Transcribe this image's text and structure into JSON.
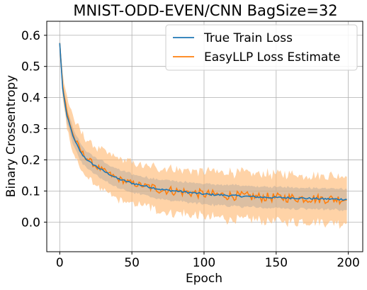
{
  "chart_data": {
    "type": "line",
    "title": "MNIST-ODD-EVEN/CNN BagSize=32",
    "xlabel": "Epoch",
    "ylabel": "Binary Crossentropy",
    "xlim": [
      -9,
      210
    ],
    "ylim": [
      -0.095,
      0.645
    ],
    "xticks": [
      0,
      50,
      100,
      150,
      200
    ],
    "yticks": [
      0.0,
      0.1,
      0.2,
      0.3,
      0.4,
      0.5,
      0.6
    ],
    "grid": true,
    "legend": "top-right",
    "x_keypoints": [
      0,
      2,
      5,
      10,
      15,
      20,
      25,
      30,
      40,
      50,
      60,
      70,
      80,
      90,
      100,
      120,
      140,
      160,
      180,
      199
    ],
    "series": [
      {
        "name": "True Train Loss",
        "color": "#1f77b4",
        "y_keypoints": [
          0.575,
          0.43,
          0.34,
          0.265,
          0.22,
          0.195,
          0.18,
          0.165,
          0.14,
          0.125,
          0.115,
          0.105,
          0.1,
          0.095,
          0.09,
          0.085,
          0.08,
          0.078,
          0.075,
          0.073
        ]
      },
      {
        "name": "EasyLLP Loss Estimate",
        "color": "#ff7f0e",
        "band_color": "#ffbb78",
        "y_keypoints": [
          0.575,
          0.44,
          0.35,
          0.27,
          0.225,
          0.2,
          0.18,
          0.165,
          0.14,
          0.125,
          0.115,
          0.105,
          0.1,
          0.095,
          0.09,
          0.085,
          0.08,
          0.078,
          0.075,
          0.073
        ],
        "band_halfwidth_keypoints": [
          0.005,
          0.04,
          0.05,
          0.06,
          0.06,
          0.06,
          0.06,
          0.065,
          0.065,
          0.065,
          0.065,
          0.07,
          0.07,
          0.07,
          0.075,
          0.075,
          0.075,
          0.075,
          0.075,
          0.075
        ]
      }
    ]
  }
}
